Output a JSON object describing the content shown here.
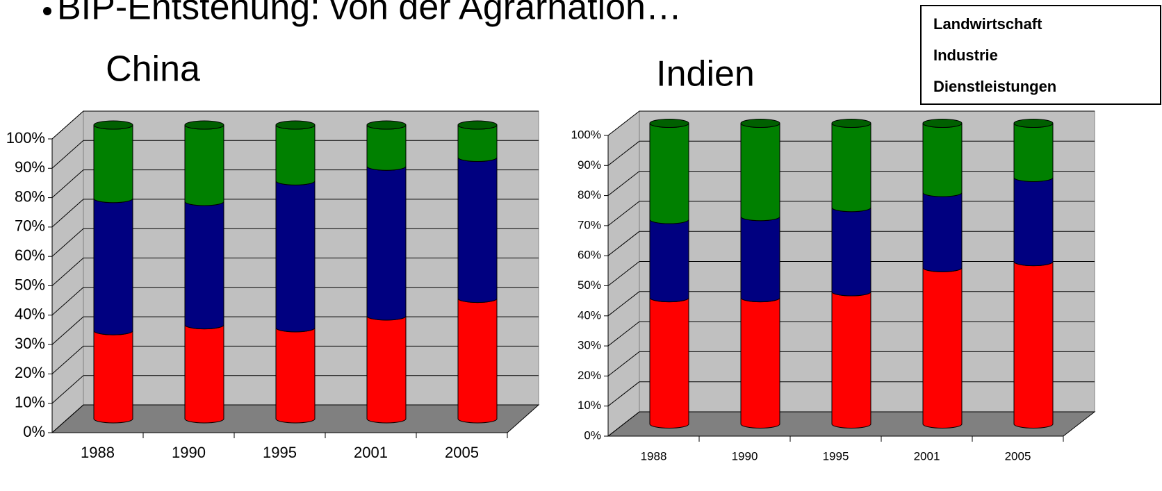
{
  "header": {
    "title": "BIP-Entstehung: von der Agrarnation…"
  },
  "chart_data": [
    {
      "type": "bar",
      "stacked": true,
      "title": "China",
      "categories": [
        "1988",
        "1990",
        "1995",
        "2001",
        "2005"
      ],
      "series": [
        {
          "name": "Landwirtschaft",
          "color": "#008000",
          "values": [
            25,
            26,
            19,
            14,
            11
          ]
        },
        {
          "name": "Industrie",
          "color": "#000080",
          "values": [
            45,
            42,
            50,
            51,
            48
          ]
        },
        {
          "name": "Dienstleistungen",
          "color": "#ff0000",
          "values": [
            30,
            32,
            31,
            35,
            41
          ]
        }
      ],
      "ylim": [
        0,
        100
      ],
      "yticks": [
        {
          "value": 0,
          "label": "0%"
        },
        {
          "value": 10,
          "label": "10%"
        },
        {
          "value": 20,
          "label": "20%"
        },
        {
          "value": 30,
          "label": "30%"
        },
        {
          "value": 40,
          "label": "40%"
        },
        {
          "value": 50,
          "label": "50%"
        },
        {
          "value": 60,
          "label": "60%"
        },
        {
          "value": 70,
          "label": "70%"
        },
        {
          "value": 80,
          "label": "80%"
        },
        {
          "value": 90,
          "label": "90%"
        },
        {
          "value": 100,
          "label": "100%"
        }
      ],
      "grid": true,
      "legend": "top-right"
    },
    {
      "type": "bar",
      "stacked": true,
      "title": "Indien",
      "categories": [
        "1988",
        "1990",
        "1995",
        "2001",
        "2005"
      ],
      "series": [
        {
          "name": "Landwirtschaft",
          "color": "#008000",
          "values": [
            32,
            31,
            28,
            23,
            18
          ]
        },
        {
          "name": "Industrie",
          "color": "#000080",
          "values": [
            26,
            27,
            28,
            25,
            28
          ]
        },
        {
          "name": "Dienstleistungen",
          "color": "#ff0000",
          "values": [
            42,
            42,
            44,
            52,
            54
          ]
        }
      ],
      "ylim": [
        0,
        100
      ],
      "yticks": [
        {
          "value": 0,
          "label": "0%"
        },
        {
          "value": 10,
          "label": "10%"
        },
        {
          "value": 20,
          "label": "20%"
        },
        {
          "value": 30,
          "label": "30%"
        },
        {
          "value": 40,
          "label": "40%"
        },
        {
          "value": 50,
          "label": "50%"
        },
        {
          "value": 60,
          "label": "60%"
        },
        {
          "value": 70,
          "label": "70%"
        },
        {
          "value": 80,
          "label": "80%"
        },
        {
          "value": 90,
          "label": "90%"
        },
        {
          "value": 100,
          "label": "100%"
        }
      ],
      "grid": true
    }
  ]
}
